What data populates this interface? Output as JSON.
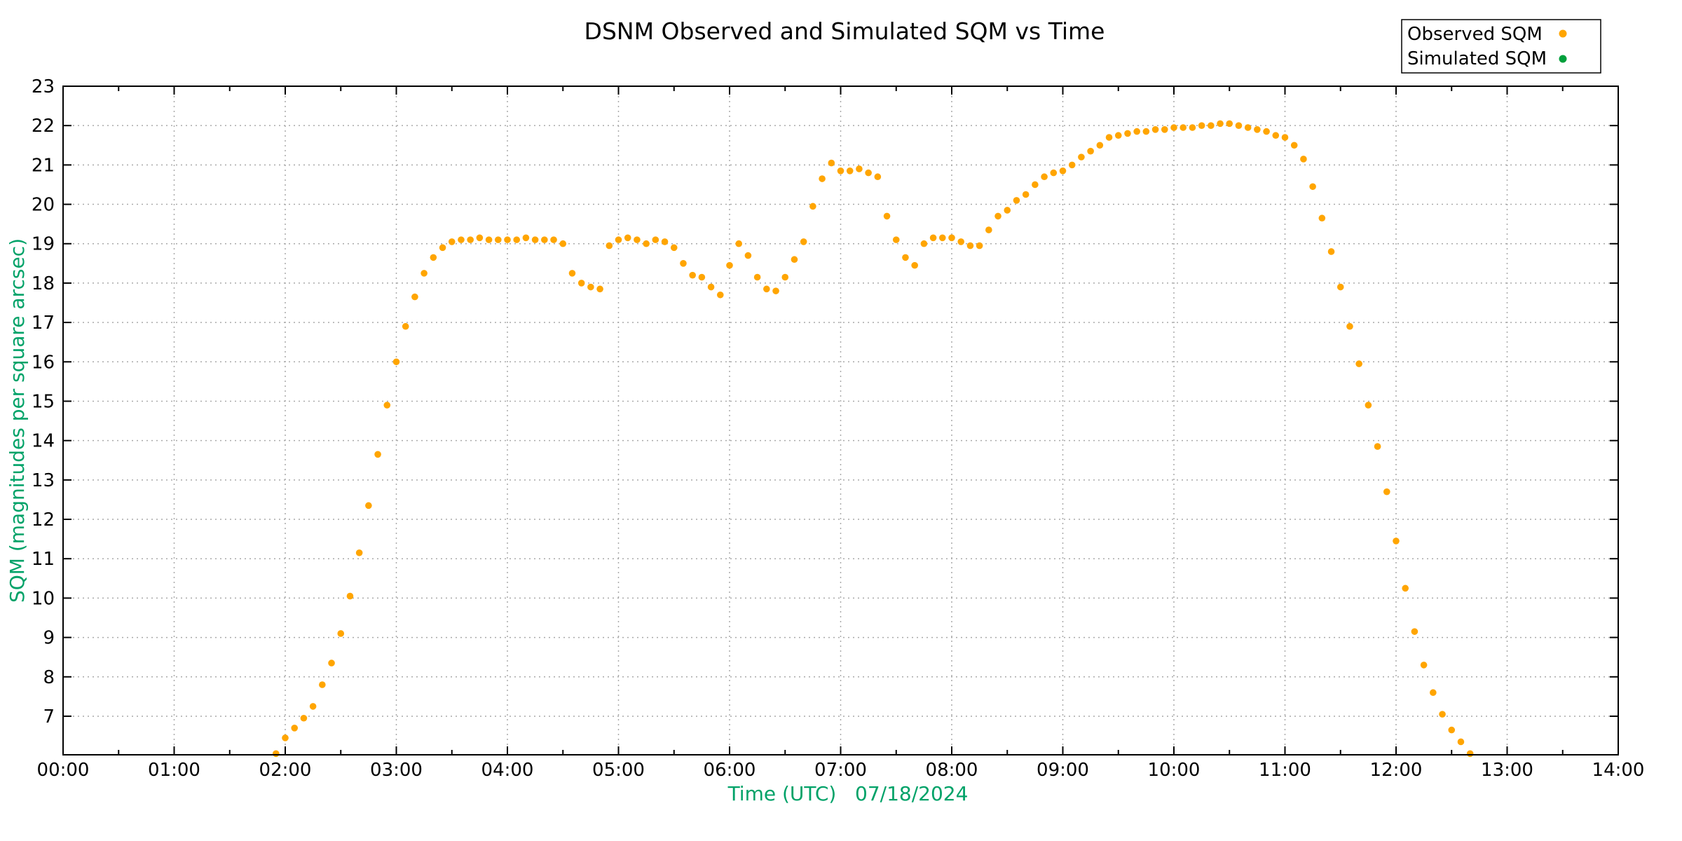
{
  "window": {
    "background": "#FFFFFF"
  },
  "chart_data": {
    "type": "scatter",
    "title": "DSNM Observed and Simulated SQM vs Time",
    "xlabel": "Time (UTC)   07/18/2024",
    "ylabel": "SQM (magnitudes per square arcsec)",
    "x_axis": {
      "unit": "hours UTC",
      "min_hours": 0,
      "max_hours": 14,
      "major_tick_step_hours": 1,
      "minor_tick_step_hours": 0.5,
      "tick_labels": [
        "00:00",
        "01:00",
        "02:00",
        "03:00",
        "04:00",
        "05:00",
        "06:00",
        "07:00",
        "08:00",
        "09:00",
        "10:00",
        "11:00",
        "12:00",
        "13:00",
        "14:00"
      ]
    },
    "y_axis": {
      "min": 6.02,
      "max": 23,
      "tick_values": [
        7,
        8,
        9,
        10,
        11,
        12,
        13,
        14,
        15,
        16,
        17,
        18,
        19,
        20,
        21,
        22,
        23
      ]
    },
    "grid": {
      "shown": true,
      "style": "dotted",
      "at": "major ticks both axes"
    },
    "legend": {
      "position": "top-right-outside-plot",
      "border": true
    },
    "colors": {
      "observed": "#FFA500",
      "simulated": "#00A03C",
      "axis_label_text": "#00A268",
      "tick_label_text": "#000000",
      "title_text": "#000000",
      "grid": "#A9A9A9",
      "axis": "#000000",
      "background": "#FFFFFF"
    },
    "series": [
      {
        "name": "Observed SQM",
        "color": "#FFA500",
        "marker": "dot",
        "points": [
          [
            "01:55",
            6.05
          ],
          [
            "02:00",
            6.45
          ],
          [
            "02:05",
            6.7
          ],
          [
            "02:10",
            6.95
          ],
          [
            "02:15",
            7.25
          ],
          [
            "02:20",
            7.8
          ],
          [
            "02:25",
            8.35
          ],
          [
            "02:30",
            9.1
          ],
          [
            "02:35",
            10.05
          ],
          [
            "02:40",
            11.15
          ],
          [
            "02:45",
            12.35
          ],
          [
            "02:50",
            13.65
          ],
          [
            "02:55",
            14.9
          ],
          [
            "03:00",
            16.0
          ],
          [
            "03:05",
            16.9
          ],
          [
            "03:10",
            17.65
          ],
          [
            "03:15",
            18.25
          ],
          [
            "03:20",
            18.65
          ],
          [
            "03:25",
            18.9
          ],
          [
            "03:30",
            19.05
          ],
          [
            "03:35",
            19.1
          ],
          [
            "03:40",
            19.1
          ],
          [
            "03:45",
            19.15
          ],
          [
            "03:50",
            19.1
          ],
          [
            "03:55",
            19.1
          ],
          [
            "04:00",
            19.1
          ],
          [
            "04:05",
            19.1
          ],
          [
            "04:10",
            19.15
          ],
          [
            "04:15",
            19.1
          ],
          [
            "04:20",
            19.1
          ],
          [
            "04:25",
            19.1
          ],
          [
            "04:30",
            19.0
          ],
          [
            "04:35",
            18.25
          ],
          [
            "04:40",
            18.0
          ],
          [
            "04:45",
            17.9
          ],
          [
            "04:50",
            17.85
          ],
          [
            "04:55",
            18.95
          ],
          [
            "05:00",
            19.1
          ],
          [
            "05:05",
            19.15
          ],
          [
            "05:10",
            19.1
          ],
          [
            "05:15",
            19.0
          ],
          [
            "05:20",
            19.1
          ],
          [
            "05:25",
            19.05
          ],
          [
            "05:30",
            18.9
          ],
          [
            "05:35",
            18.5
          ],
          [
            "05:40",
            18.2
          ],
          [
            "05:45",
            18.15
          ],
          [
            "05:50",
            17.9
          ],
          [
            "05:55",
            17.7
          ],
          [
            "06:00",
            18.45
          ],
          [
            "06:05",
            19.0
          ],
          [
            "06:10",
            18.7
          ],
          [
            "06:15",
            18.15
          ],
          [
            "06:20",
            17.85
          ],
          [
            "06:25",
            17.8
          ],
          [
            "06:30",
            18.15
          ],
          [
            "06:35",
            18.6
          ],
          [
            "06:40",
            19.05
          ],
          [
            "06:45",
            19.95
          ],
          [
            "06:50",
            20.65
          ],
          [
            "06:55",
            21.05
          ],
          [
            "07:00",
            20.85
          ],
          [
            "07:05",
            20.85
          ],
          [
            "07:10",
            20.9
          ],
          [
            "07:15",
            20.8
          ],
          [
            "07:20",
            20.7
          ],
          [
            "07:25",
            19.7
          ],
          [
            "07:30",
            19.1
          ],
          [
            "07:35",
            18.65
          ],
          [
            "07:40",
            18.45
          ],
          [
            "07:45",
            19.0
          ],
          [
            "07:50",
            19.15
          ],
          [
            "07:55",
            19.15
          ],
          [
            "08:00",
            19.15
          ],
          [
            "08:05",
            19.05
          ],
          [
            "08:10",
            18.95
          ],
          [
            "08:15",
            18.95
          ],
          [
            "08:20",
            19.35
          ],
          [
            "08:25",
            19.7
          ],
          [
            "08:30",
            19.85
          ],
          [
            "08:35",
            20.1
          ],
          [
            "08:40",
            20.25
          ],
          [
            "08:45",
            20.5
          ],
          [
            "08:50",
            20.7
          ],
          [
            "08:55",
            20.8
          ],
          [
            "09:00",
            20.85
          ],
          [
            "09:05",
            21.0
          ],
          [
            "09:10",
            21.2
          ],
          [
            "09:15",
            21.35
          ],
          [
            "09:20",
            21.5
          ],
          [
            "09:25",
            21.7
          ],
          [
            "09:30",
            21.75
          ],
          [
            "09:35",
            21.8
          ],
          [
            "09:40",
            21.85
          ],
          [
            "09:45",
            21.85
          ],
          [
            "09:50",
            21.9
          ],
          [
            "09:55",
            21.9
          ],
          [
            "10:00",
            21.95
          ],
          [
            "10:05",
            21.95
          ],
          [
            "10:10",
            21.95
          ],
          [
            "10:15",
            22.0
          ],
          [
            "10:20",
            22.0
          ],
          [
            "10:25",
            22.05
          ],
          [
            "10:30",
            22.05
          ],
          [
            "10:35",
            22.0
          ],
          [
            "10:40",
            21.95
          ],
          [
            "10:45",
            21.9
          ],
          [
            "10:50",
            21.85
          ],
          [
            "10:55",
            21.75
          ],
          [
            "11:00",
            21.7
          ],
          [
            "11:05",
            21.5
          ],
          [
            "11:10",
            21.15
          ],
          [
            "11:15",
            20.45
          ],
          [
            "11:20",
            19.65
          ],
          [
            "11:25",
            18.8
          ],
          [
            "11:30",
            17.9
          ],
          [
            "11:35",
            16.9
          ],
          [
            "11:40",
            15.95
          ],
          [
            "11:45",
            14.9
          ],
          [
            "11:50",
            13.85
          ],
          [
            "11:55",
            12.7
          ],
          [
            "12:00",
            11.45
          ],
          [
            "12:05",
            10.25
          ],
          [
            "12:10",
            9.15
          ],
          [
            "12:15",
            8.3
          ],
          [
            "12:20",
            7.6
          ],
          [
            "12:25",
            7.05
          ],
          [
            "12:30",
            6.65
          ],
          [
            "12:35",
            6.35
          ],
          [
            "12:40",
            6.05
          ]
        ]
      },
      {
        "name": "Simulated SQM",
        "color": "#00A03C",
        "marker": "dot",
        "points": []
      }
    ]
  }
}
